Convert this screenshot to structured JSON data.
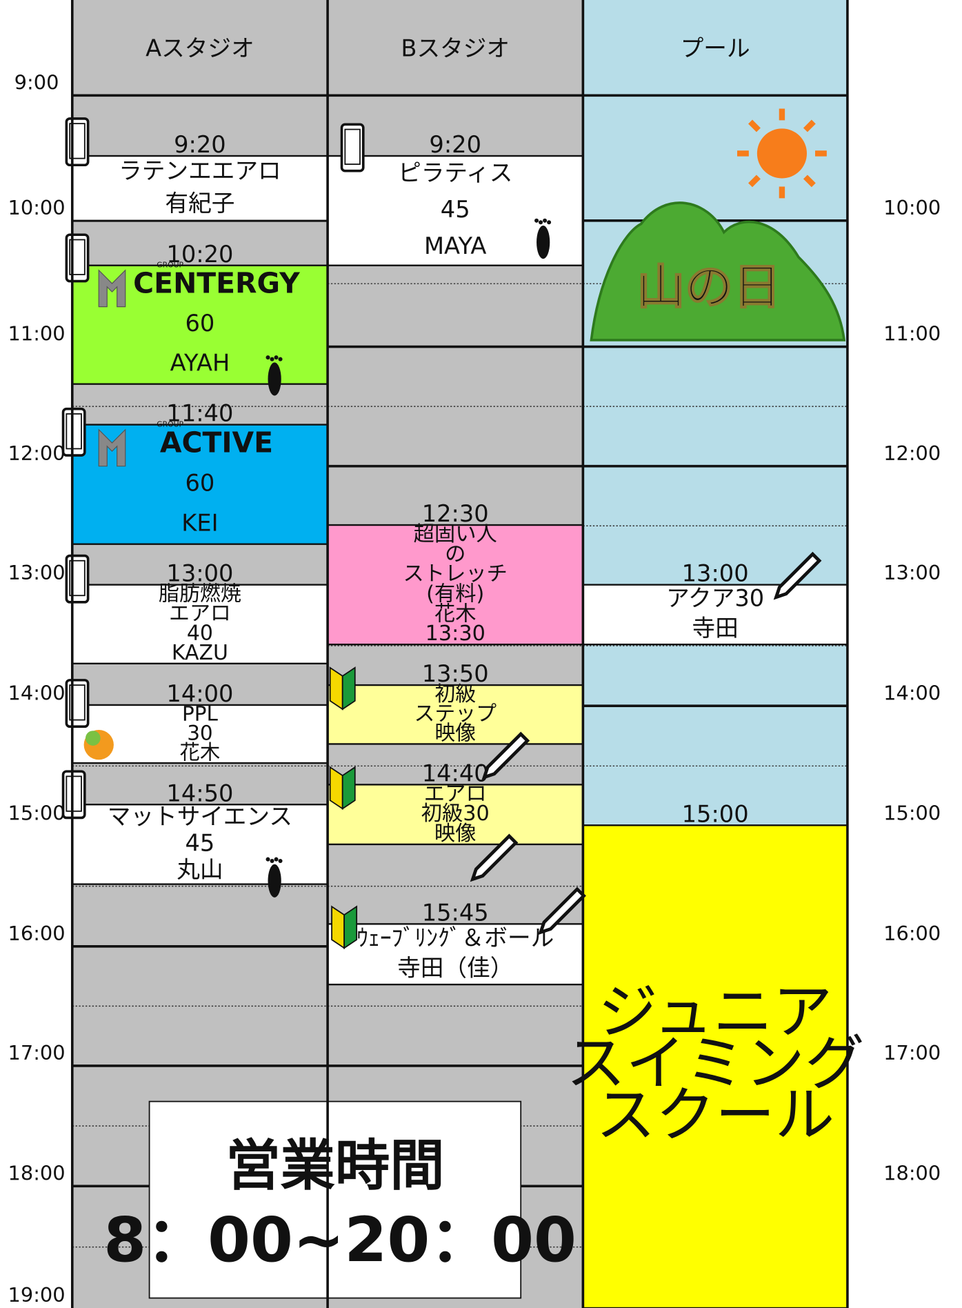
{
  "header": {
    "columns": [
      "Aスタジオ",
      "Bスタジオ",
      "プール"
    ]
  },
  "time_labels": [
    "9:00",
    "10:00",
    "11:00",
    "12:00",
    "13:00",
    "14:00",
    "15:00",
    "16:00",
    "17:00",
    "18:00",
    "19:00"
  ],
  "columns": [
    {
      "events": [
        {
          "time": "9:20",
          "lines": [
            "ラテンエエアロ",
            "有紀子"
          ]
        },
        {
          "time": "10:20",
          "logo_tag": "GROUP",
          "lines": [
            "CENTERGY",
            "60",
            "AYAH"
          ]
        },
        {
          "time": "11:40",
          "logo_tag": "GROUP",
          "lines": [
            "ACTIVE",
            "60",
            "KEI"
          ]
        },
        {
          "time": "13:00",
          "lines": [
            "脂肪燃焼",
            "エアロ",
            "40",
            "KAZU"
          ]
        },
        {
          "time": "14:00",
          "lines": [
            "PPL",
            "30",
            "花木"
          ]
        },
        {
          "time": "14:50",
          "lines": [
            "マットサイエンス",
            "45",
            "丸山"
          ]
        }
      ]
    },
    {
      "events": [
        {
          "time": "9:20",
          "lines": [
            "ピラティス",
            "45",
            "MAYA"
          ]
        },
        {
          "time": "12:30",
          "lines": [
            "超固い人",
            "の",
            "ストレッチ",
            "(有料)",
            "花木",
            "13:30"
          ]
        },
        {
          "time": "13:50",
          "lines": [
            "初級",
            "ステップ",
            "映像"
          ]
        },
        {
          "time": "14:40",
          "lines": [
            "エアロ",
            "初級30",
            "映像"
          ]
        },
        {
          "time": "15:45",
          "lines": [
            "ｳｪｰﾌﾞﾘﾝｸﾞ＆ボール",
            "寺田（佳）"
          ]
        }
      ]
    },
    {
      "events": [
        {
          "time": "13:00",
          "lines": [
            "アクア30",
            "寺田"
          ]
        },
        {
          "time": "15:00",
          "lines": [
            "ジュニア",
            "スイミング",
            "スクール"
          ]
        }
      ]
    }
  ],
  "holiday": "山の日",
  "business_hours": {
    "title": "営業時間",
    "hours": "8：00~20：00"
  }
}
